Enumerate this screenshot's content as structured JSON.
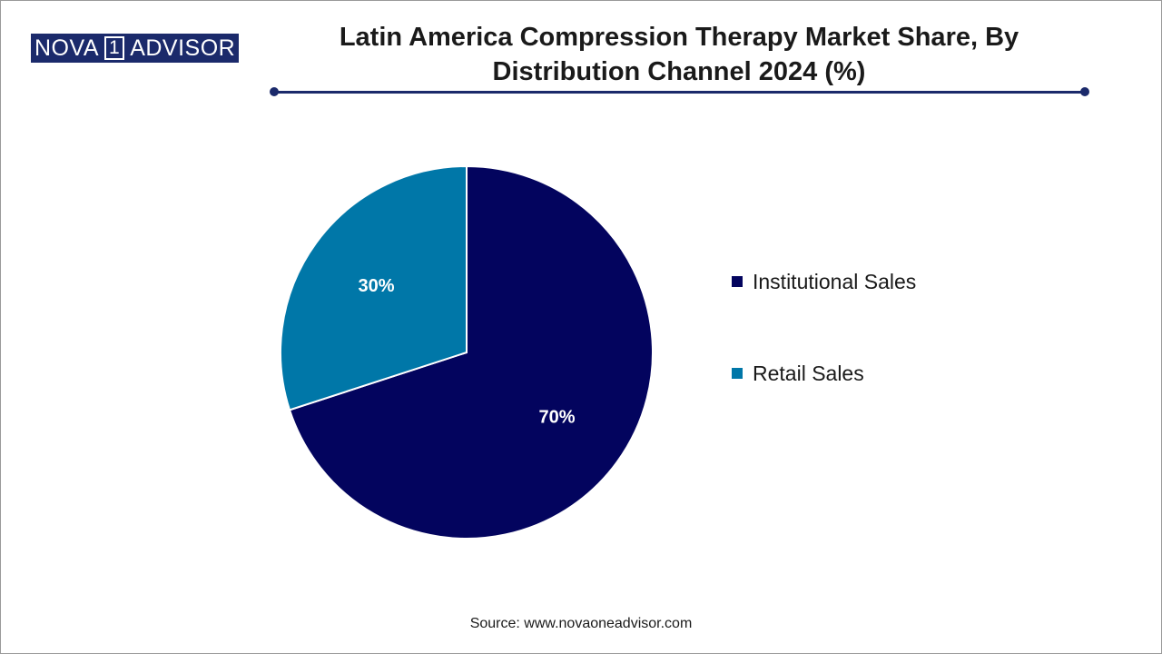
{
  "header": {
    "logo": {
      "part1": "NOVA",
      "part2": "1",
      "part3": "ADVISOR"
    }
  },
  "colors": {
    "brand": "#1b2a6b",
    "institutional": "#03045e",
    "retail": "#0077a8"
  },
  "chart_data": {
    "type": "pie",
    "title_line1": "Latin America Compression Therapy Market Share, By",
    "title_line2": "Distribution Channel 2024 (%)",
    "slices": [
      {
        "label": "Institutional Sales",
        "value": 70,
        "display": "70%",
        "color": "#03045e"
      },
      {
        "label": "Retail Sales",
        "value": 30,
        "display": "30%",
        "color": "#0077a8"
      }
    ],
    "start_angle_deg": 0,
    "direction": "clockwise",
    "legend_position": "right"
  },
  "footer": {
    "source": "Source: www.novaoneadvisor.com"
  }
}
